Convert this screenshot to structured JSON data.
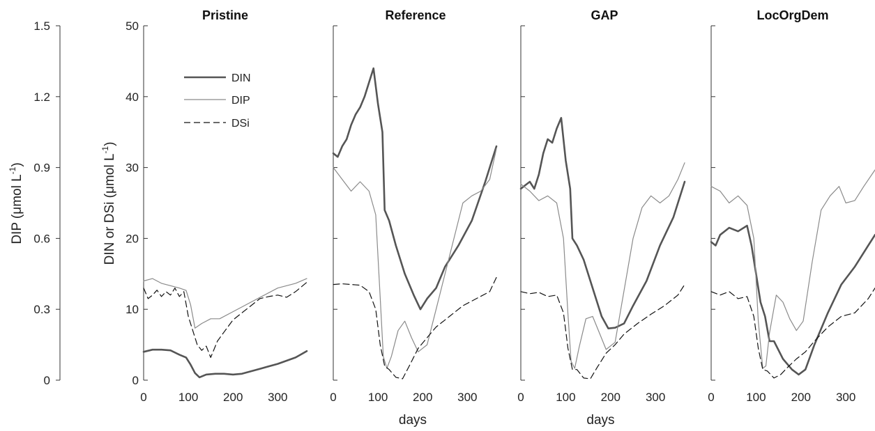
{
  "chart_data": {
    "type": "line",
    "left_axis": {
      "label": "DIP (μmol L",
      "label_sup": "-1",
      "label_end": ")",
      "ylim": [
        0,
        1.5
      ],
      "ticks": [
        "0",
        "0.3",
        "0.6",
        "0.9",
        "1.2",
        "1.5"
      ]
    },
    "right_axis": {
      "label": "DIN or DSi (μmol L",
      "label_sup": "-1",
      "label_end": ")",
      "ylim": [
        0,
        50
      ],
      "ticks": [
        "0",
        "10",
        "20",
        "30",
        "40",
        "50"
      ]
    },
    "xlim": [
      0,
      365
    ],
    "xticks": [
      "0",
      "100",
      "200",
      "300"
    ],
    "xlabel": "days",
    "legend": {
      "placement": "top-left of first panel",
      "entries": [
        {
          "name": "DIN",
          "style": "thick-solid",
          "color": "#555555"
        },
        {
          "name": "DIP",
          "style": "thin-solid",
          "color": "#8a8a8a"
        },
        {
          "name": "DSi",
          "style": "dashed",
          "color": "#111111"
        }
      ]
    },
    "panels": [
      {
        "title": "Pristine",
        "show_xlabel": false,
        "series": [
          {
            "name": "DIN",
            "x": [
              0,
              20,
              40,
              60,
              80,
              95,
              105,
              115,
              125,
              140,
              160,
              180,
              200,
              220,
              260,
              300,
              340,
              365
            ],
            "y": [
              4,
              4.3,
              4.3,
              4.2,
              3.6,
              3.2,
              2.2,
              1,
              0.4,
              0.8,
              0.9,
              0.9,
              0.8,
              0.9,
              1.6,
              2.3,
              3.2,
              4.1
            ]
          },
          {
            "name": "DIP",
            "x": [
              0,
              20,
              40,
              60,
              80,
              95,
              105,
              115,
              130,
              150,
              170,
              200,
              230,
              260,
              300,
              340,
              365
            ],
            "y": [
              0.42,
              0.43,
              0.41,
              0.4,
              0.39,
              0.38,
              0.32,
              0.22,
              0.24,
              0.26,
              0.26,
              0.29,
              0.32,
              0.35,
              0.39,
              0.41,
              0.43
            ]
          },
          {
            "name": "DSi",
            "x": [
              0,
              10,
              20,
              30,
              40,
              50,
              60,
              70,
              80,
              90,
              100,
              110,
              120,
              130,
              140,
              150,
              165,
              180,
              200,
              220,
              240,
              260,
              280,
              300,
              320,
              340,
              365
            ],
            "y": [
              13,
              11.5,
              12,
              12.7,
              11.8,
              12.5,
              12,
              13,
              11.8,
              12.5,
              9,
              7,
              5,
              4.2,
              4.8,
              3.2,
              5.5,
              6.8,
              8.5,
              9.5,
              10.5,
              11.5,
              11.8,
              12,
              11.7,
              12.5,
              13.8
            ]
          }
        ]
      },
      {
        "title": "Reference",
        "show_xlabel": true,
        "series": [
          {
            "name": "DIN",
            "x": [
              0,
              10,
              20,
              30,
              40,
              50,
              60,
              70,
              80,
              90,
              100,
              110,
              115,
              125,
              140,
              160,
              180,
              195,
              210,
              230,
              250,
              280,
              310,
              340,
              365
            ],
            "y": [
              32,
              31.5,
              33,
              34,
              36,
              37.5,
              38.5,
              40,
              42,
              44,
              39,
              35,
              24,
              22.5,
              19,
              15,
              12,
              10,
              11.5,
              13,
              16,
              19,
              22.5,
              28,
              33
            ]
          },
          {
            "name": "DIP",
            "x": [
              0,
              20,
              40,
              60,
              80,
              95,
              105,
              112,
              120,
              130,
              145,
              160,
              175,
              190,
              210,
              230,
              250,
              270,
              290,
              310,
              330,
              350,
              365
            ],
            "y": [
              0.9,
              0.85,
              0.8,
              0.84,
              0.8,
              0.7,
              0.35,
              0.1,
              0.05,
              0.1,
              0.21,
              0.25,
              0.18,
              0.12,
              0.15,
              0.3,
              0.45,
              0.6,
              0.75,
              0.78,
              0.8,
              0.85,
              0.98
            ]
          },
          {
            "name": "DSi",
            "x": [
              0,
              20,
              40,
              60,
              80,
              95,
              105,
              115,
              125,
              140,
              155,
              170,
              190,
              210,
              230,
              260,
              290,
              320,
              350,
              365
            ],
            "y": [
              13.5,
              13.6,
              13.5,
              13.4,
              12.5,
              10,
              5,
              2,
              1.5,
              0.4,
              0.2,
              2,
              4.5,
              6,
              7.5,
              9,
              10.5,
              11.5,
              12.5,
              14.5
            ]
          }
        ]
      },
      {
        "title": "GAP",
        "show_xlabel": true,
        "series": [
          {
            "name": "DIN",
            "x": [
              0,
              10,
              20,
              30,
              40,
              50,
              60,
              70,
              80,
              90,
              100,
              110,
              115,
              125,
              140,
              160,
              180,
              195,
              210,
              230,
              250,
              280,
              310,
              340,
              365
            ],
            "y": [
              27,
              27.5,
              28,
              27,
              29,
              32,
              34,
              33.5,
              35.5,
              37,
              31,
              27,
              20,
              19,
              17,
              13,
              9,
              7.3,
              7.4,
              8,
              10.5,
              14,
              19,
              23,
              28
            ]
          },
          {
            "name": "DIP",
            "x": [
              0,
              20,
              40,
              60,
              80,
              95,
              105,
              112,
              120,
              130,
              145,
              160,
              175,
              190,
              210,
              230,
              250,
              270,
              290,
              310,
              330,
              350,
              365
            ],
            "y": [
              0.83,
              0.8,
              0.76,
              0.78,
              0.75,
              0.6,
              0.28,
              0.08,
              0.05,
              0.14,
              0.26,
              0.27,
              0.2,
              0.13,
              0.16,
              0.38,
              0.6,
              0.73,
              0.78,
              0.75,
              0.78,
              0.85,
              0.92
            ]
          },
          {
            "name": "DSi",
            "x": [
              0,
              20,
              40,
              60,
              80,
              95,
              105,
              115,
              125,
              140,
              155,
              170,
              190,
              210,
              230,
              260,
              290,
              320,
              350,
              365
            ],
            "y": [
              12.5,
              12.2,
              12.4,
              11.8,
              12,
              9.5,
              4.5,
              1.5,
              1.5,
              0.3,
              0.2,
              1.8,
              3.8,
              5,
              6.5,
              8,
              9.3,
              10.5,
              12,
              13.5
            ]
          }
        ]
      },
      {
        "title": "LocOrgDem",
        "show_xlabel": false,
        "series": [
          {
            "name": "DIN",
            "x": [
              0,
              10,
              20,
              40,
              60,
              80,
              90,
              100,
              110,
              120,
              130,
              140,
              160,
              180,
              195,
              210,
              230,
              260,
              290,
              320,
              350,
              365
            ],
            "y": [
              19.5,
              19,
              20.5,
              21.5,
              21,
              21.8,
              19,
              15,
              11,
              9,
              5.5,
              5.5,
              3,
              1.5,
              0.8,
              1.5,
              5,
              9.5,
              13.5,
              16,
              19,
              20.5
            ]
          },
          {
            "name": "DIP",
            "x": [
              0,
              20,
              40,
              60,
              80,
              95,
              105,
              115,
              122,
              130,
              145,
              160,
              175,
              190,
              205,
              225,
              245,
              265,
              285,
              300,
              320,
              340,
              365
            ],
            "y": [
              0.82,
              0.8,
              0.75,
              0.78,
              0.74,
              0.6,
              0.25,
              0.05,
              0.06,
              0.2,
              0.36,
              0.33,
              0.26,
              0.21,
              0.25,
              0.5,
              0.72,
              0.78,
              0.82,
              0.75,
              0.76,
              0.82,
              0.89
            ]
          },
          {
            "name": "DSi",
            "x": [
              0,
              20,
              40,
              60,
              80,
              95,
              105,
              115,
              125,
              140,
              155,
              170,
              190,
              210,
              230,
              260,
              290,
              320,
              350,
              365
            ],
            "y": [
              12.5,
              12,
              12.5,
              11.5,
              11.8,
              9,
              4.5,
              1.5,
              1.3,
              0.3,
              0.8,
              1.8,
              3,
              4,
              5.5,
              7.5,
              9,
              9.5,
              11.5,
              13
            ]
          }
        ]
      }
    ]
  }
}
